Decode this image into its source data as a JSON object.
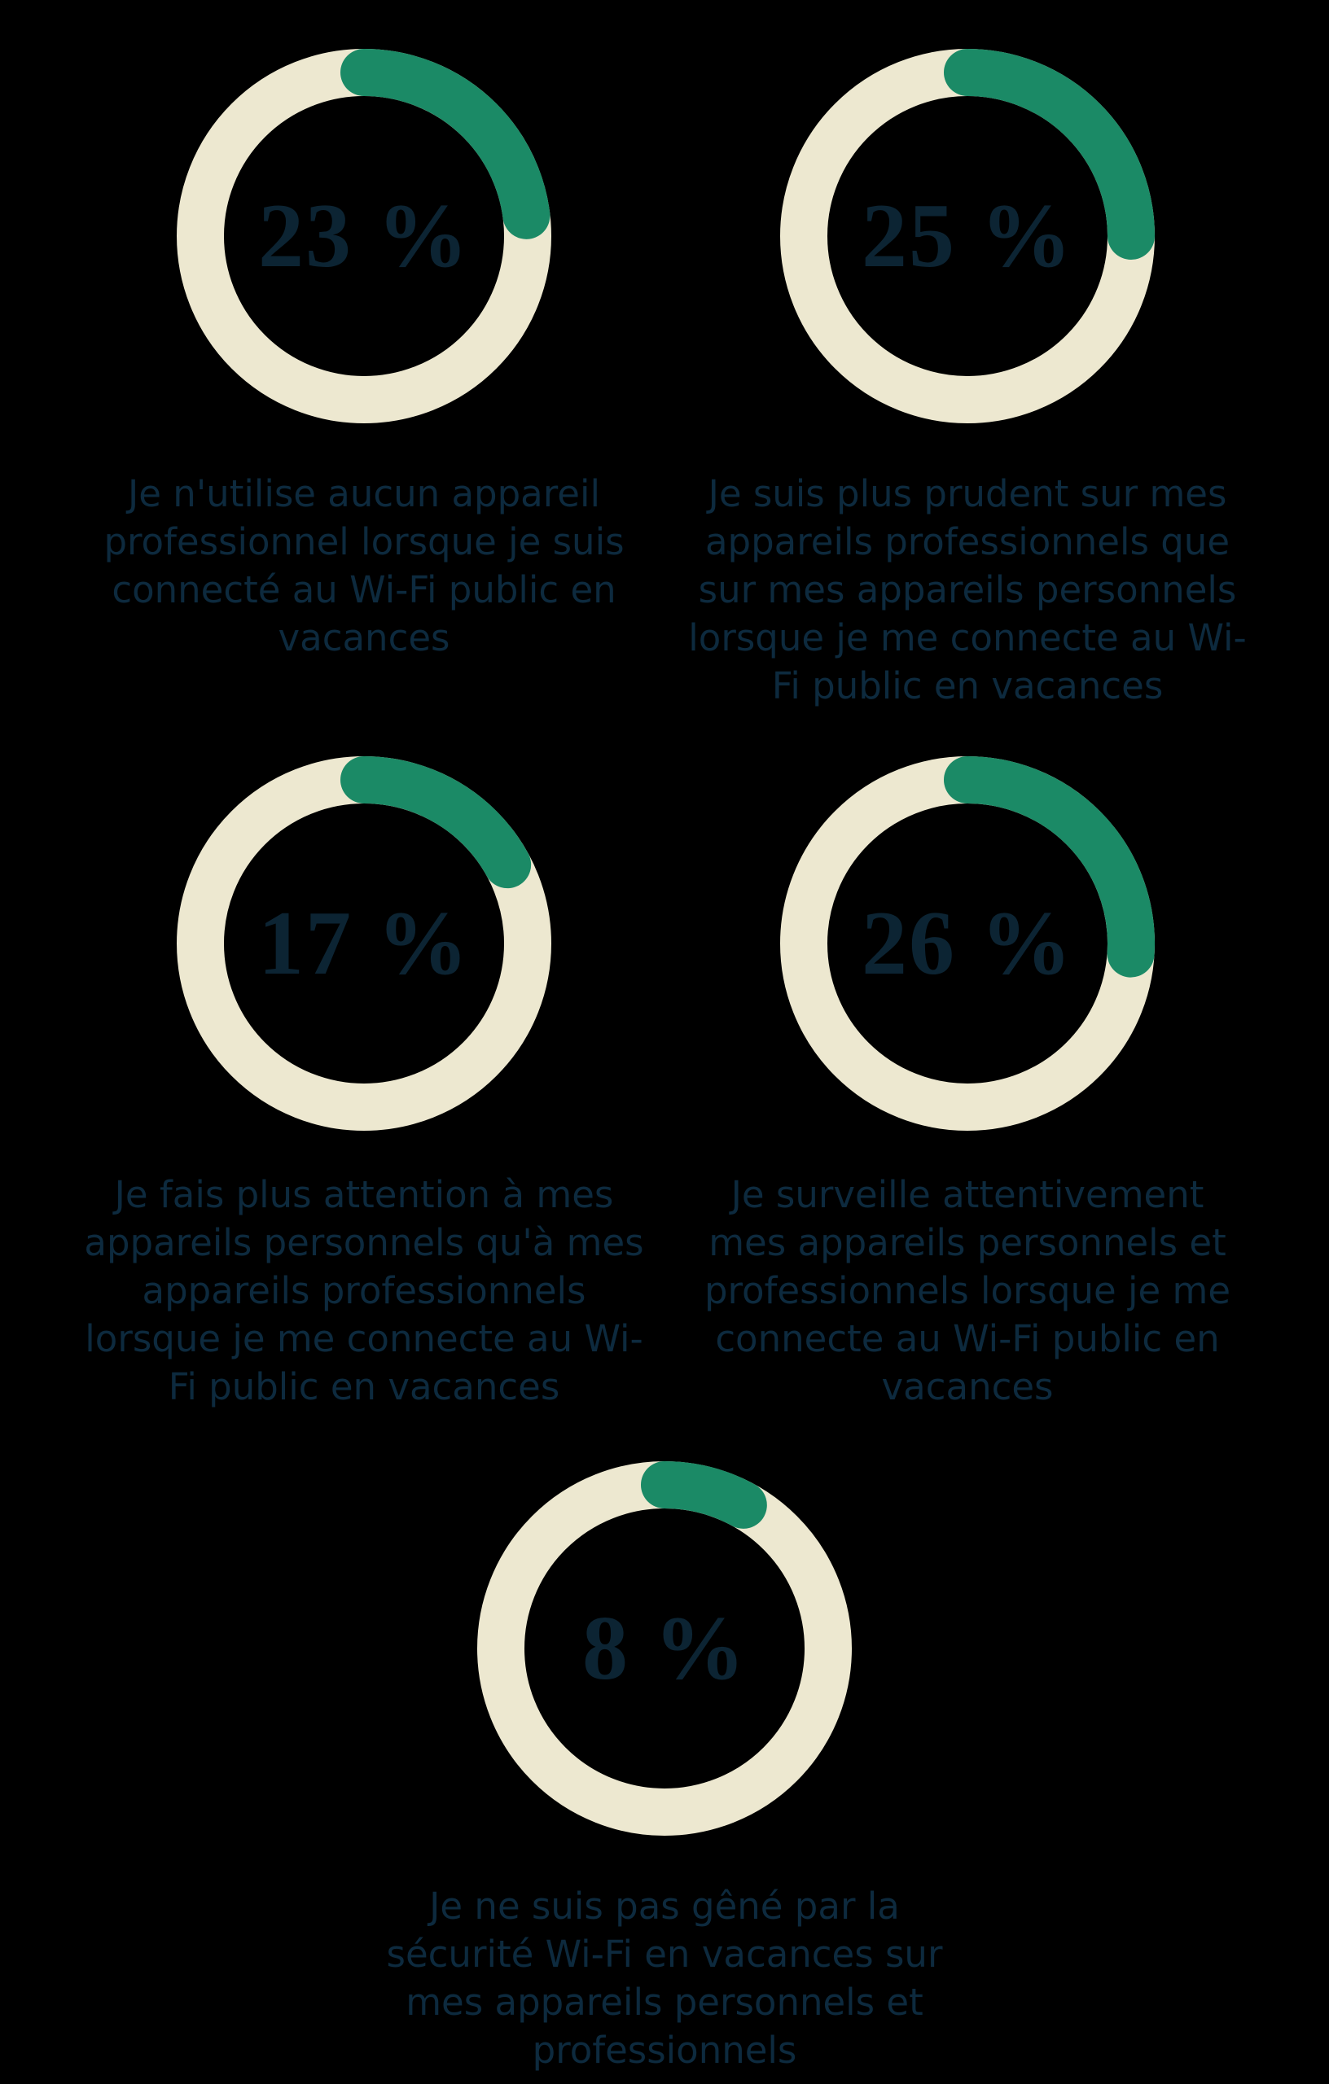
{
  "background": "#000000",
  "colors": {
    "ring": "#EDE8D0",
    "arc": "#1B8A66",
    "number": "#0C2433",
    "caption": "#0D2A3E"
  },
  "chart_data": {
    "type": "pie",
    "subtype": "donut-progress-grid",
    "unit": "%",
    "legend_position": "below-each-donut",
    "arc_start": "top",
    "arc_direction": "clockwise",
    "items": [
      {
        "value": 23,
        "label": "23 %",
        "caption_lines": [
          "Je n'utilise aucun appareil",
          "professionnel lorsque je suis",
          "connecté au Wi-Fi public en",
          "vacances"
        ]
      },
      {
        "value": 25,
        "label": "25 %",
        "caption_lines": [
          "Je suis plus prudent sur mes",
          "appareils professionnels que",
          "sur mes appareils personnels",
          "lorsque je me connecte au Wi-",
          "Fi public en vacances"
        ]
      },
      {
        "value": 17,
        "label": "17 %",
        "caption_lines": [
          "Je fais plus attention à mes",
          "appareils personnels qu'à mes",
          "appareils professionnels",
          "lorsque je me connecte au Wi-",
          "Fi public en vacances"
        ]
      },
      {
        "value": 26,
        "label": "26 %",
        "caption_lines": [
          "Je surveille attentivement",
          "mes appareils personnels et",
          "professionnels lorsque je me",
          "connecte au Wi-Fi public en",
          "vacances"
        ]
      },
      {
        "value": 8,
        "label": "8 %",
        "caption_lines": [
          "Je ne suis pas gêné par la",
          "sécurité Wi-Fi en vacances sur",
          "mes appareils personnels et",
          "professionnels"
        ]
      }
    ]
  }
}
